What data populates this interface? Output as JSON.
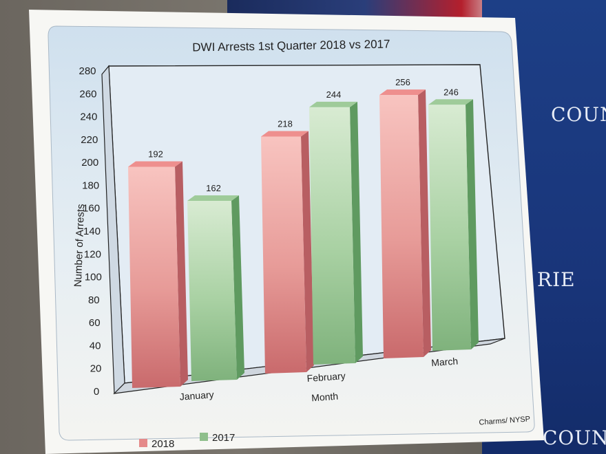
{
  "background": {
    "banner_text_top": "COUNT",
    "banner_text_mid": "RIE",
    "banner_text_bottom": "COUNT"
  },
  "chart_data": {
    "type": "bar",
    "title": "DWI Arrests 1st Quarter 2018 vs  2017",
    "xlabel": "Month",
    "ylabel": "Number of Arrests",
    "categories": [
      "January",
      "February",
      "March"
    ],
    "series": [
      {
        "name": "2018",
        "values": [
          192,
          218,
          256
        ],
        "color": "#e58a8a"
      },
      {
        "name": "2017",
        "values": [
          162,
          244,
          246
        ],
        "color": "#8fbf8c"
      }
    ],
    "yticks": [
      0,
      20,
      40,
      60,
      80,
      100,
      120,
      140,
      160,
      180,
      200,
      220,
      240,
      260,
      280
    ],
    "ylim": [
      0,
      280
    ],
    "legend_position": "bottom-left",
    "source": "Charms/ NYSP"
  }
}
